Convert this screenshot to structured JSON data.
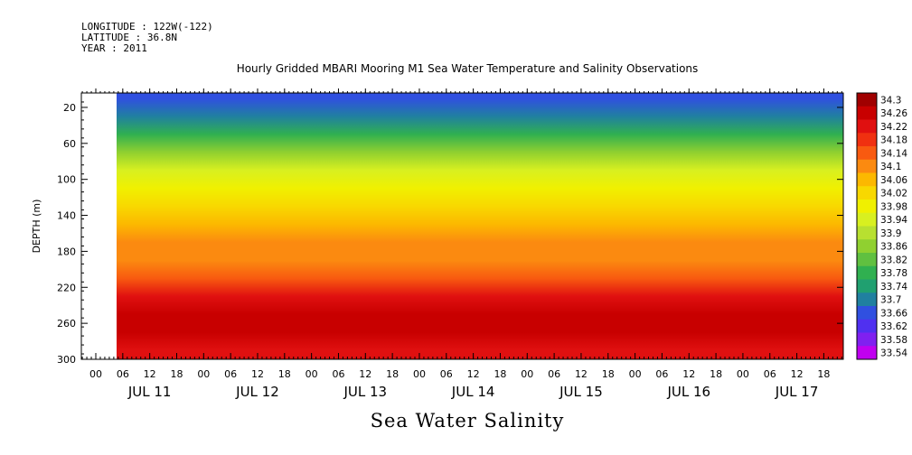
{
  "header": {
    "longitude": "LONGITUDE : 122W(-122)",
    "latitude": "LATITUDE : 36.8N",
    "year": "YEAR : 2011"
  },
  "chart_data": {
    "type": "heatmap",
    "title": "Hourly Gridded MBARI Mooring M1 Sea Water Temperature and Salinity Observations",
    "variable_label": "Sea Water Salinity",
    "ylabel": "DEPTH (m)",
    "y_ticks": [
      20,
      60,
      100,
      140,
      180,
      220,
      260,
      300
    ],
    "ylim": [
      300,
      4
    ],
    "x_hour_ticks": [
      "00",
      "06",
      "12",
      "18",
      "00",
      "06",
      "12",
      "18",
      "00",
      "06",
      "12",
      "18",
      "00",
      "06",
      "12",
      "18",
      "00",
      "06",
      "12",
      "18",
      "00",
      "06",
      "12",
      "18",
      "00",
      "06",
      "12",
      "18"
    ],
    "x_day_labels": [
      "JUL 11",
      "JUL 12",
      "JUL 13",
      "JUL 14",
      "JUL 15",
      "JUL 16",
      "JUL 17"
    ],
    "colorbar_levels": [
      "34.3",
      "34.26",
      "34.22",
      "34.18",
      "34.14",
      "34.1",
      "34.06",
      "34.02",
      "33.98",
      "33.94",
      "33.9",
      "33.86",
      "33.82",
      "33.78",
      "33.74",
      "33.7",
      "33.66",
      "33.62",
      "33.58",
      "33.54"
    ],
    "colorbar_colors": [
      "#a00000",
      "#c80000",
      "#e01010",
      "#f03010",
      "#f85a10",
      "#fb8a10",
      "#fcb800",
      "#f8d800",
      "#f0f000",
      "#d8f020",
      "#b8e030",
      "#90d030",
      "#60c040",
      "#30b050",
      "#20a070",
      "#2080a0",
      "#3050e0",
      "#5030f0",
      "#8020f0",
      "#c000f0"
    ],
    "depth_profile": [
      {
        "depth": 10,
        "value": 33.64
      },
      {
        "depth": 30,
        "value": 33.72
      },
      {
        "depth": 50,
        "value": 33.78
      },
      {
        "depth": 70,
        "value": 33.86
      },
      {
        "depth": 90,
        "value": 33.92
      },
      {
        "depth": 110,
        "value": 33.98
      },
      {
        "depth": 130,
        "value": 34.02
      },
      {
        "depth": 150,
        "value": 34.08
      },
      {
        "depth": 170,
        "value": 34.1
      },
      {
        "depth": 190,
        "value": 34.12
      },
      {
        "depth": 210,
        "value": 34.16
      },
      {
        "depth": 230,
        "value": 34.2
      },
      {
        "depth": 250,
        "value": 34.26
      },
      {
        "depth": 270,
        "value": 34.24
      },
      {
        "depth": 290,
        "value": 34.2
      }
    ]
  }
}
